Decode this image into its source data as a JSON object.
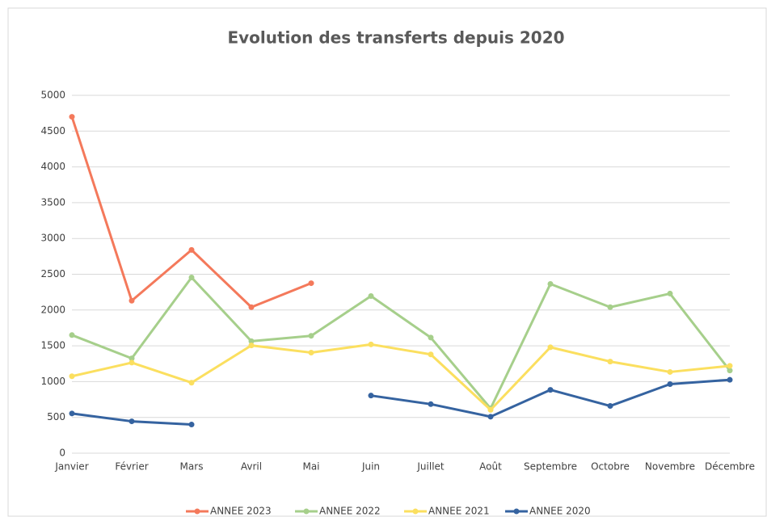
{
  "chart_data": {
    "type": "line",
    "title": "Evolution des transferts depuis 2020",
    "categories": [
      "Janvier",
      "Février",
      "Mars",
      "Avril",
      "Mai",
      "Juin",
      "Juillet",
      "Août",
      "Septembre",
      "Octobre",
      "Novembre",
      "Décembre"
    ],
    "series": [
      {
        "name": "ANNEE 2023",
        "color": "#f4795b",
        "values": [
          4700,
          2130,
          2840,
          2040,
          2375,
          null,
          null,
          null,
          null,
          null,
          null,
          null
        ]
      },
      {
        "name": "ANNEE 2022",
        "color": "#a6cf8b",
        "values": [
          1650,
          1325,
          2455,
          1565,
          1640,
          2195,
          1615,
          625,
          2365,
          2040,
          2230,
          1155
        ]
      },
      {
        "name": "ANNEE 2021",
        "color": "#fbdf5f",
        "values": [
          1075,
          1265,
          985,
          1505,
          1405,
          1520,
          1380,
          605,
          1480,
          1280,
          1135,
          1220
        ]
      },
      {
        "name": "ANNEE 2020",
        "color": "#3563a0",
        "values": [
          555,
          445,
          400,
          null,
          null,
          805,
          685,
          510,
          885,
          660,
          965,
          1025
        ]
      }
    ],
    "ylim": [
      0,
      5000
    ],
    "yticks": [
      0,
      500,
      1000,
      1500,
      2000,
      2500,
      3000,
      3500,
      4000,
      4500,
      5000
    ],
    "grid": true,
    "legend": "bottom"
  }
}
